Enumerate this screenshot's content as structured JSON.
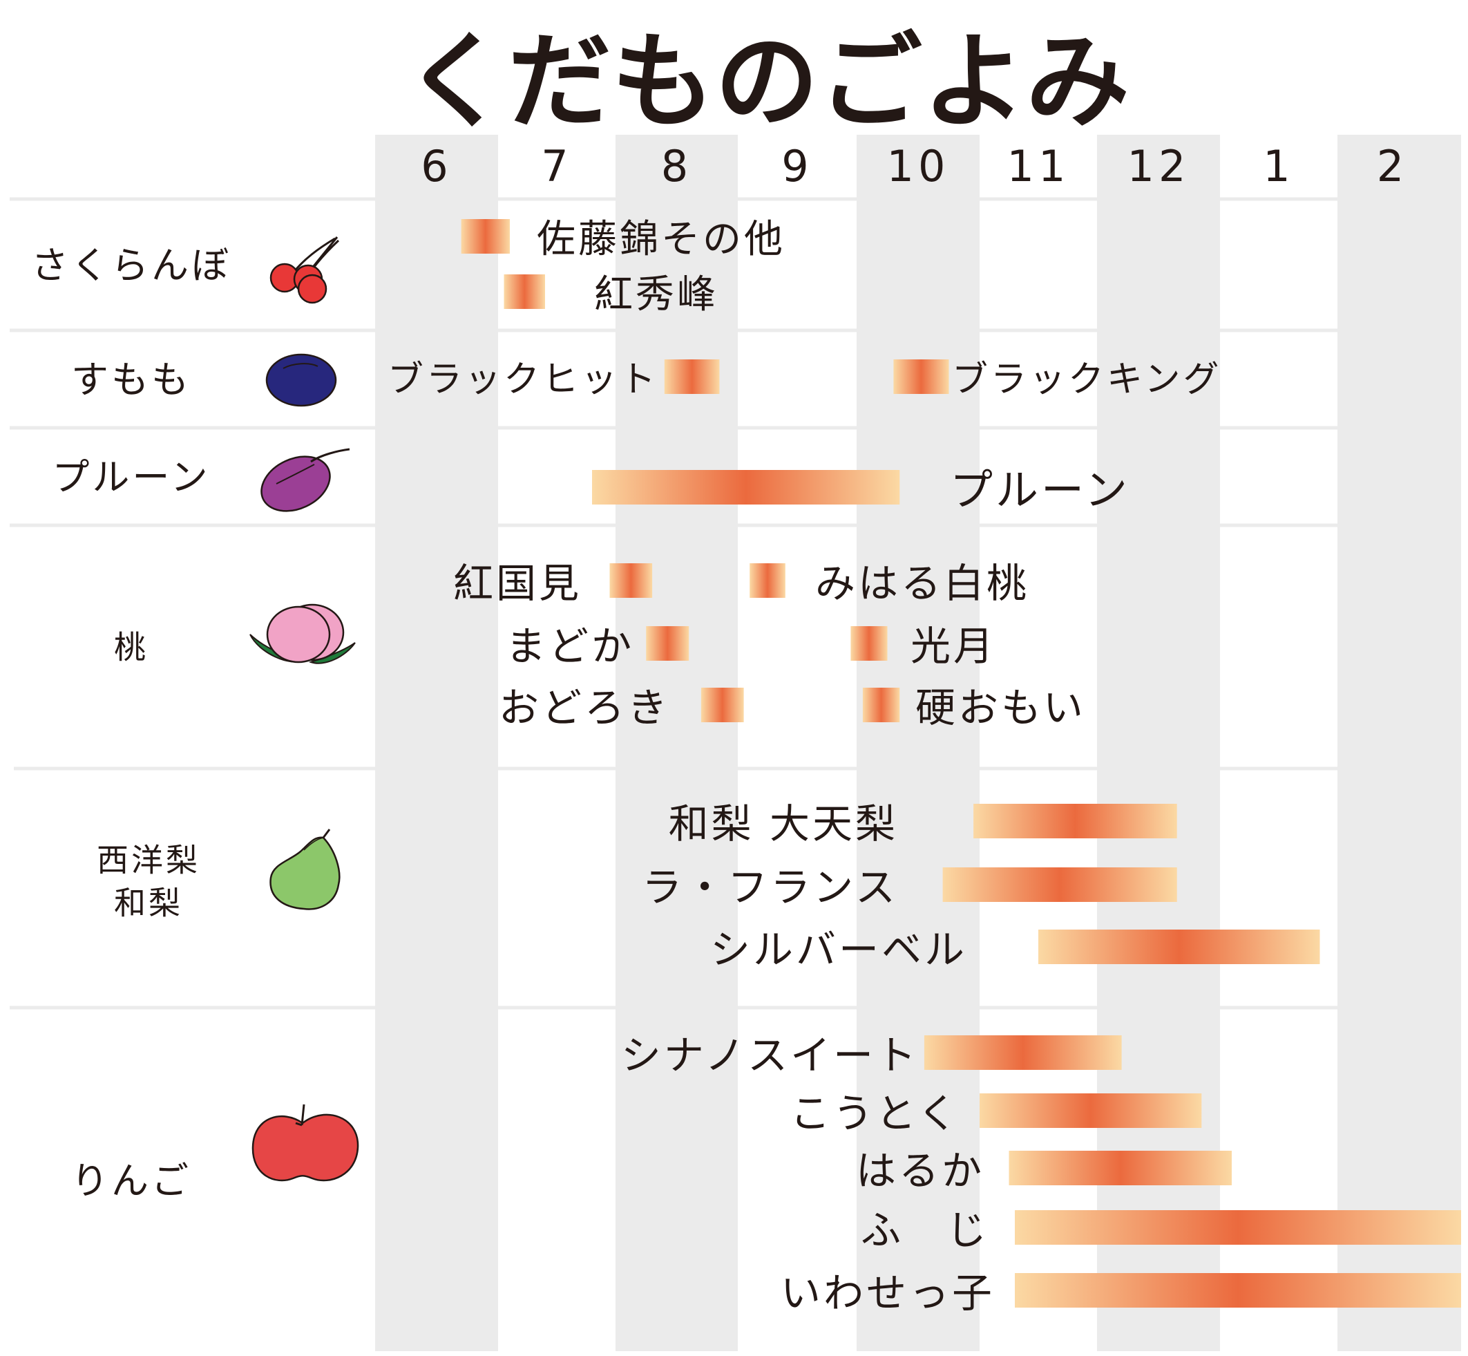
{
  "title": "くだものごよみ",
  "months": [
    "6",
    "7",
    "8",
    "9",
    "10",
    "11",
    "12",
    "1",
    "2"
  ],
  "colors": {
    "column_shade": "#ebebeb",
    "separator": "#ebebeb",
    "text": "#231815",
    "bar_edge": "#fbd9a4",
    "bar_center": "#eb6a3e"
  },
  "chart_data": {
    "type": "gantt",
    "title": "くだものごよみ",
    "x_unit": "month",
    "months": [
      "6",
      "7",
      "8",
      "9",
      "10",
      "11",
      "12",
      "1",
      "2"
    ],
    "groups": [
      {
        "label": "さくらんぼ",
        "icon": "cherry-icon",
        "items": [
          {
            "name": "佐藤錦その他",
            "start": 6.7,
            "end": 7.1
          },
          {
            "name": "紅秀峰",
            "start": 7.05,
            "end": 7.4
          }
        ]
      },
      {
        "label": "すもも",
        "icon": "plum-icon",
        "items": [
          {
            "name": "ブラックヒット",
            "start": 8.4,
            "end": 8.85
          },
          {
            "name": "ブラックキング",
            "start": 10.3,
            "end": 10.75
          }
        ]
      },
      {
        "label": "プルーン",
        "icon": "prune-icon",
        "items": [
          {
            "name": "プルーン",
            "start": 7.8,
            "end": 10.35
          }
        ]
      },
      {
        "label": "桃",
        "icon": "peach-icon",
        "items": [
          {
            "name": "紅国見",
            "start": 7.95,
            "end": 8.3
          },
          {
            "name": "みはる白桃",
            "start": 9.1,
            "end": 9.4
          },
          {
            "name": "まどか",
            "start": 8.25,
            "end": 8.6
          },
          {
            "name": "光月",
            "start": 9.95,
            "end": 10.25
          },
          {
            "name": "おどろき",
            "start": 8.7,
            "end": 9.05
          },
          {
            "name": "硬おもい",
            "start": 10.05,
            "end": 10.35
          }
        ]
      },
      {
        "label": "西洋梨\n和梨",
        "label_lines": [
          "西洋梨",
          "和梨"
        ],
        "icon": "pear-icon",
        "items": [
          {
            "name": "和梨 大天梨",
            "start": 10.95,
            "end": 12.65
          },
          {
            "name": "ラ・フランス",
            "start": 10.7,
            "end": 12.65
          },
          {
            "name": "シルバーベル",
            "start": 11.5,
            "end": 13.85
          }
        ]
      },
      {
        "label": "りんご",
        "icon": "apple-icon",
        "items": [
          {
            "name": "シナノスイート",
            "start": 10.55,
            "end": 12.2
          },
          {
            "name": "こうとく",
            "start": 11.0,
            "end": 12.85
          },
          {
            "name": "はるか",
            "start": 11.25,
            "end": 13.1
          },
          {
            "name": "ふ　じ",
            "start": 11.3,
            "end": 15.0
          },
          {
            "name": "いわせっ子",
            "start": 11.3,
            "end": 15.0
          }
        ]
      }
    ]
  }
}
